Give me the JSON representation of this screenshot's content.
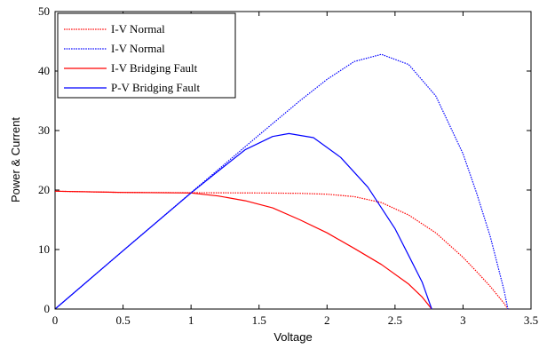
{
  "chart_data": {
    "type": "line",
    "title": "",
    "xlabel": "Voltage",
    "ylabel": "Power & Current",
    "xlim": [
      0,
      3.5
    ],
    "ylim": [
      0,
      50
    ],
    "xticks": [
      0,
      0.5,
      1,
      1.5,
      2,
      2.5,
      3,
      3.5
    ],
    "yticks": [
      0,
      10,
      20,
      30,
      40,
      50
    ],
    "xtick_labels": [
      "0",
      "0.5",
      "1",
      "1.5",
      "2",
      "2.5",
      "3",
      "3.5"
    ],
    "ytick_labels": [
      "0",
      "10",
      "20",
      "30",
      "40",
      "50"
    ],
    "grid": false,
    "legend_position": "top-left",
    "series": [
      {
        "name": "I-V Normal",
        "color": "#ff0000",
        "style": "dotted",
        "x": [
          0,
          0.5,
          1.0,
          1.5,
          1.8,
          2.0,
          2.2,
          2.4,
          2.6,
          2.8,
          3.0,
          3.1,
          3.2,
          3.3,
          3.33
        ],
        "y": [
          19.8,
          19.6,
          19.55,
          19.5,
          19.45,
          19.3,
          18.9,
          17.9,
          15.8,
          12.8,
          8.7,
          6.3,
          3.8,
          1.0,
          0
        ]
      },
      {
        "name": "I-V  Normal",
        "color": "#0000ff",
        "style": "dotted",
        "x": [
          0,
          0.5,
          1.0,
          1.5,
          1.8,
          2.0,
          2.2,
          2.4,
          2.6,
          2.8,
          3.0,
          3.1,
          3.2,
          3.3,
          3.33
        ],
        "y": [
          0,
          9.8,
          19.55,
          29.25,
          35.0,
          38.6,
          41.6,
          42.8,
          41.1,
          35.8,
          26.1,
          19.5,
          12.2,
          3.3,
          0
        ]
      },
      {
        "name": "I-V Bridging Fault",
        "color": "#ff0000",
        "style": "solid",
        "x": [
          0,
          0.5,
          1.0,
          1.2,
          1.4,
          1.6,
          1.8,
          2.0,
          2.2,
          2.4,
          2.6,
          2.7,
          2.77
        ],
        "y": [
          19.8,
          19.6,
          19.5,
          19.0,
          18.2,
          17.0,
          15.0,
          12.8,
          10.2,
          7.5,
          4.2,
          2.0,
          0
        ]
      },
      {
        "name": "P-V Bridging Fault",
        "color": "#0000ff",
        "style": "solid",
        "x": [
          0,
          0.5,
          1.0,
          1.2,
          1.4,
          1.6,
          1.72,
          1.9,
          2.1,
          2.3,
          2.5,
          2.6,
          2.7,
          2.77
        ],
        "y": [
          0,
          9.8,
          19.5,
          23.2,
          26.8,
          29.0,
          29.5,
          28.8,
          25.5,
          20.5,
          13.5,
          9.0,
          4.5,
          0
        ]
      }
    ]
  }
}
